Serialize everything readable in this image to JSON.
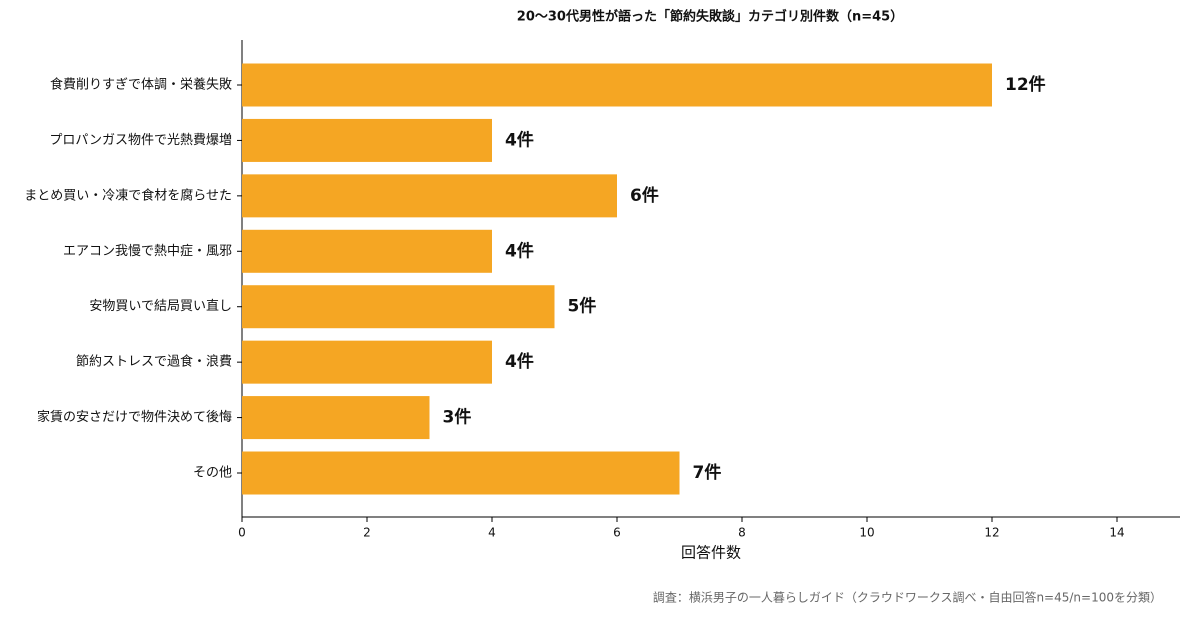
{
  "chart_data": {
    "type": "bar",
    "orientation": "horizontal",
    "title": "20〜30代男性が語った「節約失敗談」カテゴリ別件数（n=45）",
    "xlabel": "回答件数",
    "source": "調査：横浜男子の一人暮らしガイド（クラウドワークス調べ・自由回答n=45/n=100を分類）",
    "categories": [
      "食費削りすぎで体調・栄養失敗",
      "プロパンガス物件で光熱費爆増",
      "まとめ買い・冷凍で食材を腐らせた",
      "エアコン我慢で熱中症・風邪",
      "安物買いで結局買い直し",
      "節約ストレスで過食・浪費",
      "家賃の安さだけで物件決めて後悔",
      "その他"
    ],
    "values": [
      12,
      4,
      6,
      4,
      5,
      4,
      3,
      7
    ],
    "value_labels": [
      "12件",
      "4件",
      "6件",
      "4件",
      "5件",
      "4件",
      "3件",
      "7件"
    ],
    "color": "#f5a623",
    "xlim": [
      0,
      15
    ],
    "xticks": [
      0,
      2,
      4,
      6,
      8,
      10,
      12,
      14
    ]
  }
}
